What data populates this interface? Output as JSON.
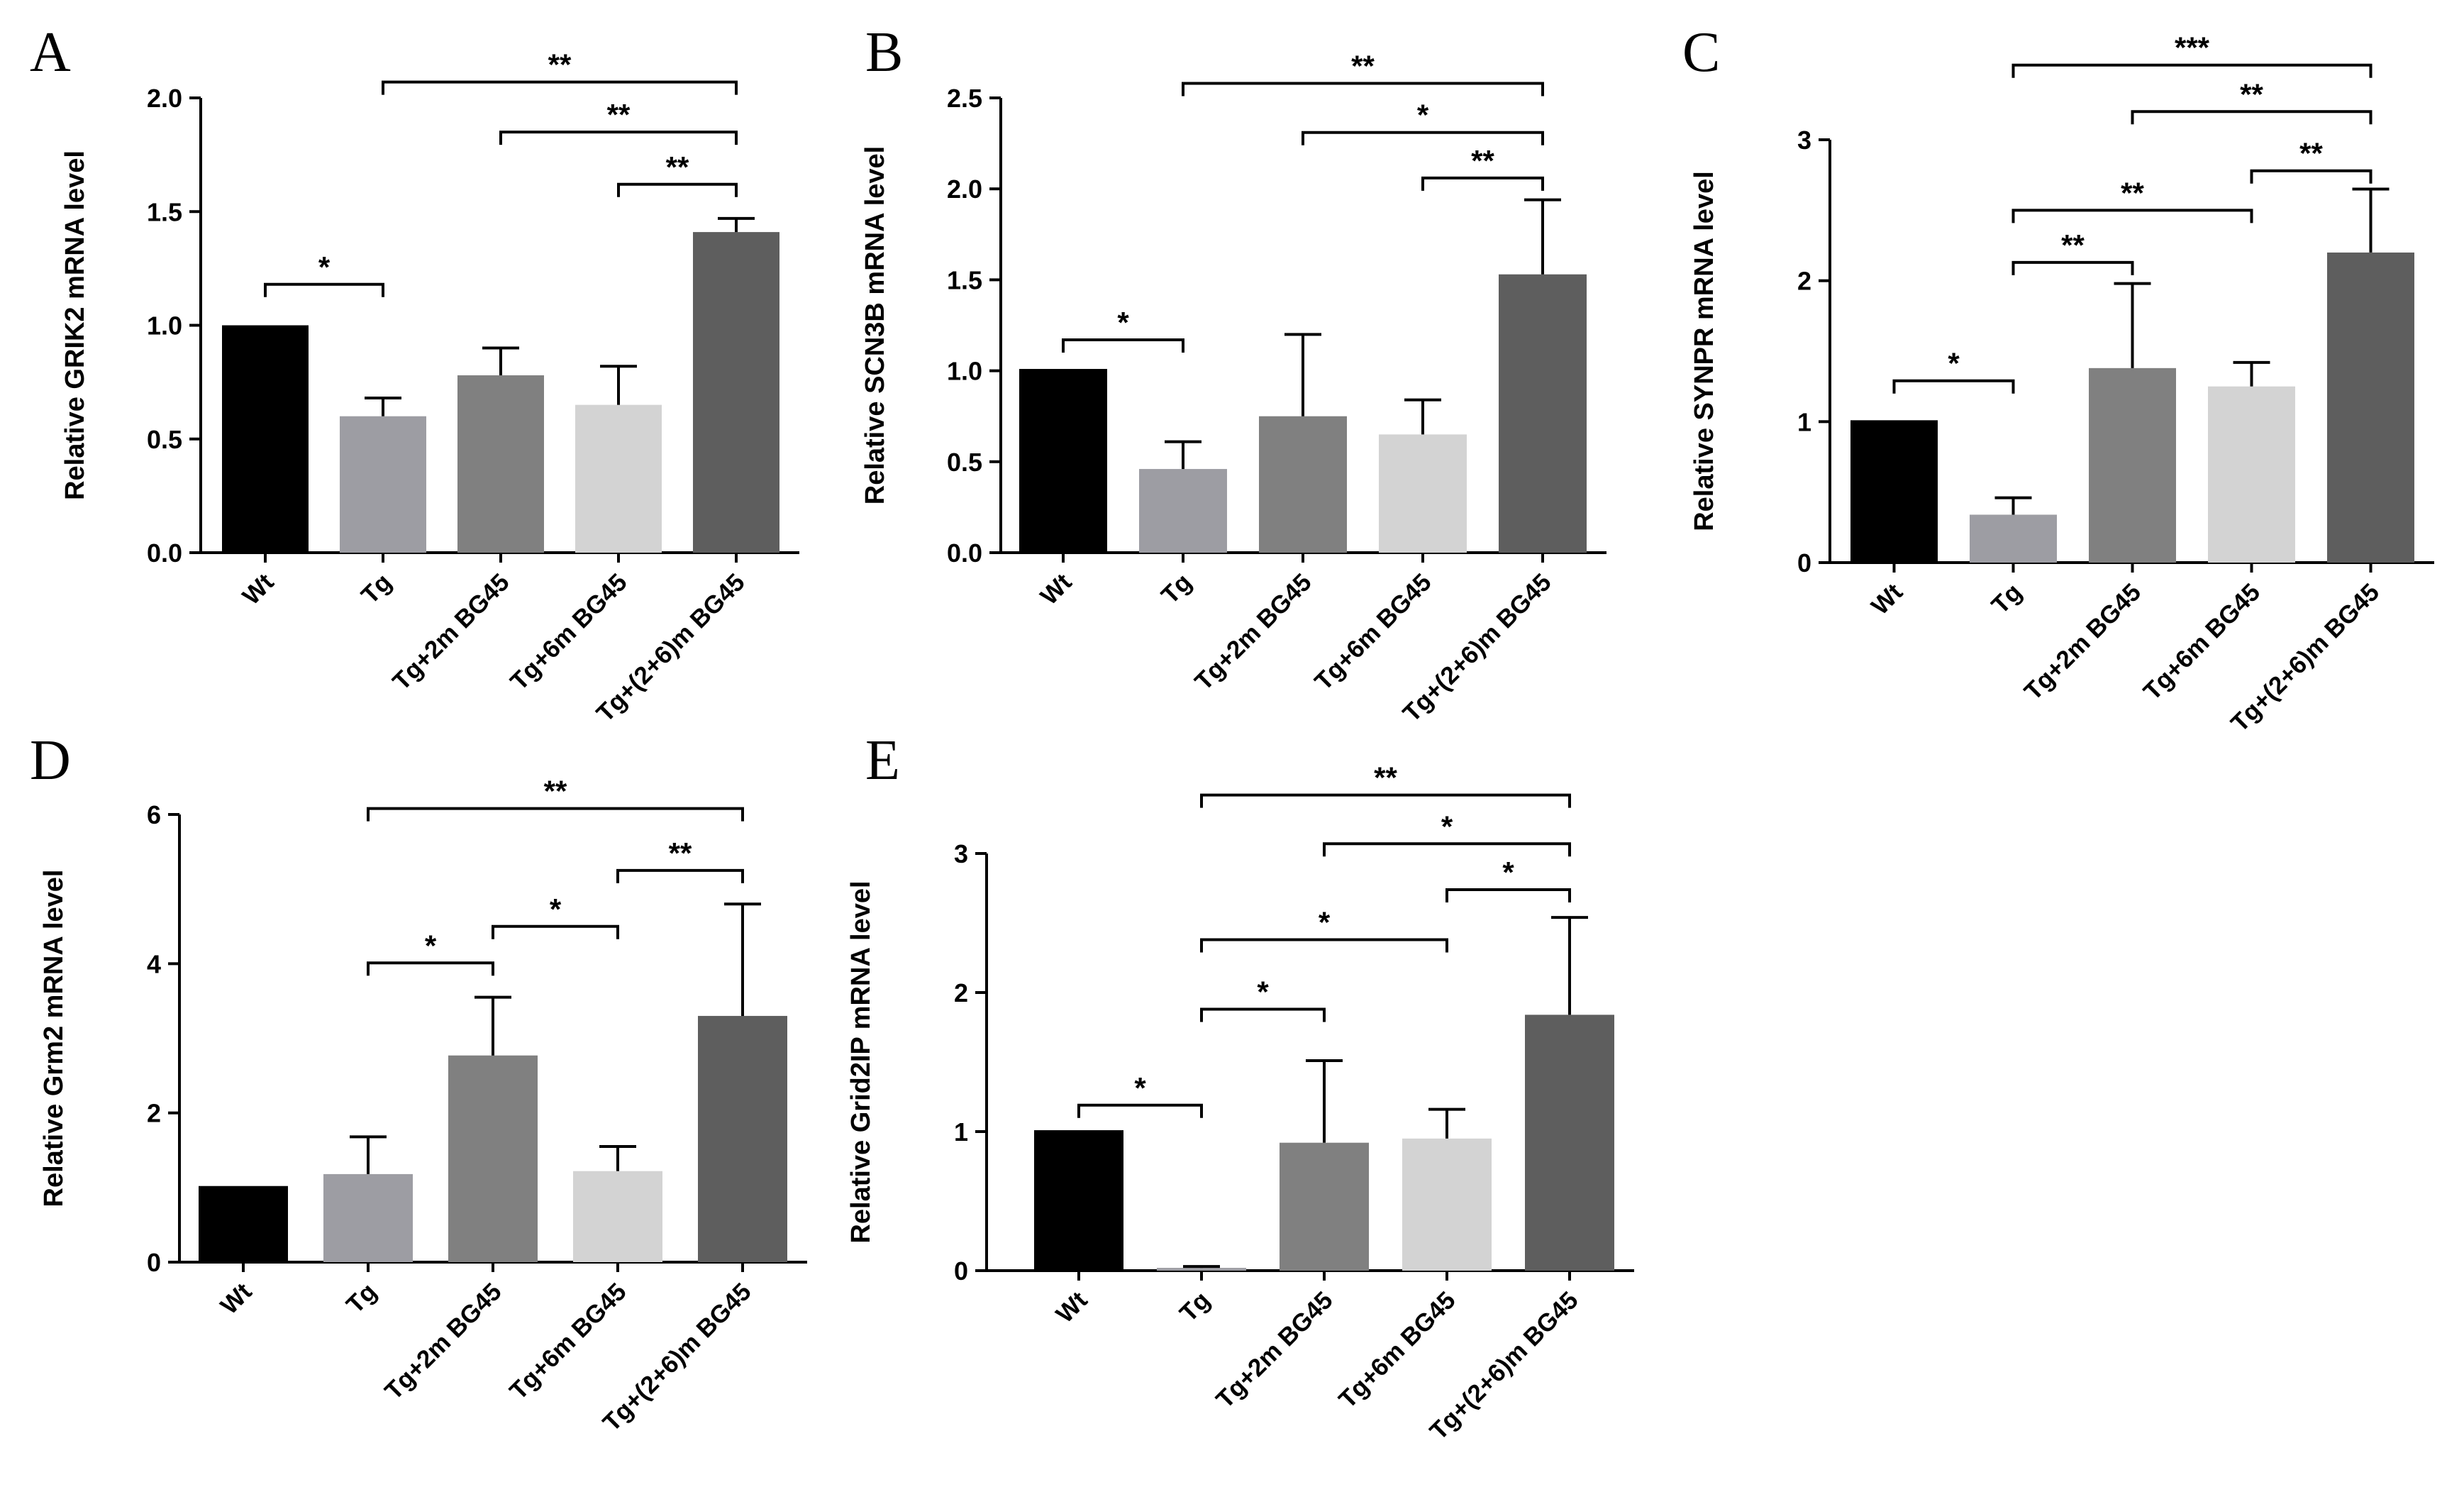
{
  "chart_data": [
    {
      "panel": "A",
      "type": "bar",
      "ylabel": "Relative GRIK2 mRNA level",
      "ylim": [
        0,
        2.0
      ],
      "yticks": [
        0.0,
        0.5,
        1.0,
        1.5,
        2.0
      ],
      "ytick_labels": [
        "0.0",
        "0.5",
        "1.0",
        "1.5",
        "2.0"
      ],
      "categories": [
        "Wt",
        "Tg",
        "Tg+2m BG45",
        "Tg+6m BG45",
        "Tg+(2+6)m BG45"
      ],
      "values": [
        1.0,
        0.6,
        0.78,
        0.65,
        1.41
      ],
      "errors": [
        0.0,
        0.08,
        0.12,
        0.17,
        0.06
      ],
      "colors": [
        "#000000",
        "#9d9da3",
        "#808080",
        "#d3d3d3",
        "#5e5e5e"
      ],
      "significance": [
        {
          "from": 0,
          "to": 1,
          "label": "*",
          "y": 1.18
        },
        {
          "from": 1,
          "to": 4,
          "label": "**",
          "y": 2.07
        },
        {
          "from": 2,
          "to": 4,
          "label": "**",
          "y": 1.85
        },
        {
          "from": 3,
          "to": 4,
          "label": "**",
          "y": 1.62
        }
      ]
    },
    {
      "panel": "B",
      "type": "bar",
      "ylabel": "Relative SCN3B mRNA level",
      "ylim": [
        0,
        2.5
      ],
      "yticks": [
        0.0,
        0.5,
        1.0,
        1.5,
        2.0,
        2.5
      ],
      "ytick_labels": [
        "0.0",
        "0.5",
        "1.0",
        "1.5",
        "2.0",
        "2.5"
      ],
      "categories": [
        "Wt",
        "Tg",
        "Tg+2m BG45",
        "Tg+6m BG45",
        "Tg+(2+6)m BG45"
      ],
      "values": [
        1.01,
        0.46,
        0.75,
        0.65,
        1.53
      ],
      "errors": [
        0.0,
        0.15,
        0.45,
        0.19,
        0.41
      ],
      "colors": [
        "#000000",
        "#9d9da3",
        "#808080",
        "#d3d3d3",
        "#5e5e5e"
      ],
      "significance": [
        {
          "from": 0,
          "to": 1,
          "label": "*",
          "y": 1.17
        },
        {
          "from": 1,
          "to": 4,
          "label": "**",
          "y": 2.58
        },
        {
          "from": 2,
          "to": 4,
          "label": "*",
          "y": 2.31
        },
        {
          "from": 3,
          "to": 4,
          "label": "**",
          "y": 2.06
        }
      ]
    },
    {
      "panel": "C",
      "type": "bar",
      "ylabel": "Relative SYNPR mRNA level",
      "ylim": [
        0,
        3
      ],
      "yticks": [
        0,
        1,
        2,
        3
      ],
      "ytick_labels": [
        "0",
        "1",
        "2",
        "3"
      ],
      "categories": [
        "Wt",
        "Tg",
        "Tg+2m BG45",
        "Tg+6m BG45",
        "Tg+(2+6)m BG45"
      ],
      "values": [
        1.01,
        0.34,
        1.38,
        1.25,
        2.2
      ],
      "errors": [
        0.0,
        0.12,
        0.6,
        0.17,
        0.45
      ],
      "colors": [
        "#000000",
        "#9d9da3",
        "#808080",
        "#d3d3d3",
        "#5e5e5e"
      ],
      "significance": [
        {
          "from": 0,
          "to": 1,
          "label": "*",
          "y": 1.29
        },
        {
          "from": 1,
          "to": 2,
          "label": "**",
          "y": 2.13
        },
        {
          "from": 1,
          "to": 3,
          "label": "**",
          "y": 2.5
        },
        {
          "from": 3,
          "to": 4,
          "label": "**",
          "y": 2.78
        },
        {
          "from": 2,
          "to": 4,
          "label": "**",
          "y": 3.2
        },
        {
          "from": 1,
          "to": 4,
          "label": "***",
          "y": 3.53
        }
      ]
    },
    {
      "panel": "D",
      "type": "bar",
      "ylabel": "Relative Grm2 mRNA level",
      "ylim": [
        0,
        6
      ],
      "yticks": [
        0,
        2,
        4,
        6
      ],
      "ytick_labels": [
        "0",
        "2",
        "4",
        "6"
      ],
      "categories": [
        "Wt",
        "Tg",
        "Tg+2m BG45",
        "Tg+6m BG45",
        "Tg+(2+6)m BG45"
      ],
      "values": [
        1.02,
        1.18,
        2.77,
        1.22,
        3.3
      ],
      "errors": [
        0.0,
        0.5,
        0.78,
        0.33,
        1.5
      ],
      "colors": [
        "#000000",
        "#9d9da3",
        "#808080",
        "#d3d3d3",
        "#5e5e5e"
      ],
      "significance": [
        {
          "from": 1,
          "to": 2,
          "label": "*",
          "y": 4.01
        },
        {
          "from": 2,
          "to": 3,
          "label": "*",
          "y": 4.5
        },
        {
          "from": 3,
          "to": 4,
          "label": "**",
          "y": 5.25
        },
        {
          "from": 1,
          "to": 4,
          "label": "**",
          "y": 6.08
        }
      ]
    },
    {
      "panel": "E",
      "type": "bar",
      "ylabel": "Relative Grid2IP mRNA level",
      "ylim": [
        0,
        3
      ],
      "yticks": [
        0,
        1,
        2,
        3
      ],
      "ytick_labels": [
        "0",
        "1",
        "2",
        "3"
      ],
      "categories": [
        "Wt",
        "Tg",
        "Tg+2m BG45",
        "Tg+6m BG45",
        "Tg+(2+6)m BG45"
      ],
      "values": [
        1.01,
        0.02,
        0.92,
        0.95,
        1.84
      ],
      "errors": [
        0.0,
        0.01,
        0.59,
        0.21,
        0.7
      ],
      "colors": [
        "#000000",
        "#9d9da3",
        "#808080",
        "#d3d3d3",
        "#5e5e5e"
      ],
      "significance": [
        {
          "from": 0,
          "to": 1,
          "label": "*",
          "y": 1.19
        },
        {
          "from": 1,
          "to": 2,
          "label": "*",
          "y": 1.88
        },
        {
          "from": 1,
          "to": 3,
          "label": "*",
          "y": 2.38
        },
        {
          "from": 3,
          "to": 4,
          "label": "*",
          "y": 2.74
        },
        {
          "from": 2,
          "to": 4,
          "label": "*",
          "y": 3.07
        },
        {
          "from": 1,
          "to": 4,
          "label": "**",
          "y": 3.42
        }
      ]
    }
  ]
}
